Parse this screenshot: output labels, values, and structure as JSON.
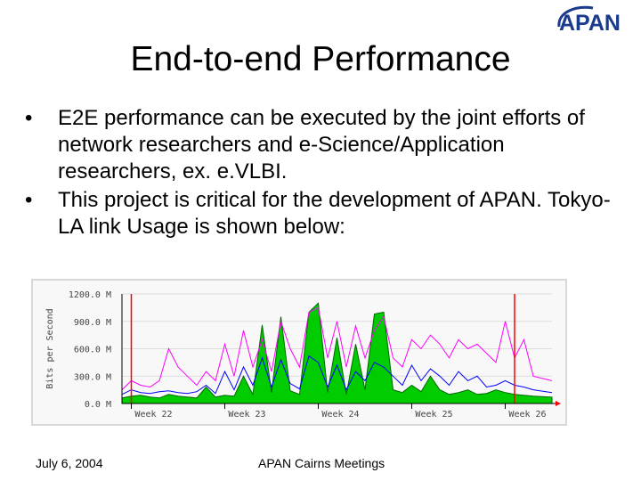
{
  "logo": {
    "text": "APAN",
    "icon": "apan-logo"
  },
  "slide": {
    "title": "End-to-end Performance",
    "bullets": [
      "E2E performance can be executed by the joint efforts of network researchers and e-Science/Application researchers, ex. e.VLBI.",
      "This project is critical for the development of APAN.  Tokyo-LA link Usage is shown below:"
    ]
  },
  "footer": {
    "date": "July 6, 2004",
    "meeting": "APAN Cairns Meetings"
  },
  "colors": {
    "chart_background": "#f8f8f8",
    "chart_frame": "#d8d8d8",
    "incoming": "#00cc00",
    "incoming_dark": "#006600",
    "outgoing": "#0000ff",
    "peak": "#ff00ff",
    "marker": "#ff0000",
    "grid": "#ff0000"
  },
  "chart_data": {
    "type": "area",
    "ylabel": "Bits per Second",
    "y_tick_labels": [
      "1200.0 M",
      "900.0 M",
      "600.0 M",
      "300.0 M",
      "0.0 M"
    ],
    "y_ticks": [
      1200,
      900,
      600,
      300,
      0
    ],
    "ylim": [
      0,
      1200
    ],
    "x_tick_labels": [
      "Week 22",
      "Week 23",
      "Week 24",
      "Week 25",
      "Week 26"
    ],
    "xlim": [
      21.9,
      26.5
    ],
    "grid": true,
    "series": [
      {
        "key": "green",
        "style": "area",
        "x": [
          21.9,
          22.0,
          22.1,
          22.2,
          22.3,
          22.4,
          22.5,
          22.6,
          22.7,
          22.8,
          22.9,
          23.0,
          23.1,
          23.2,
          23.3,
          23.4,
          23.5,
          23.6,
          23.7,
          23.8,
          23.9,
          24.0,
          24.1,
          24.2,
          24.3,
          24.4,
          24.5,
          24.6,
          24.7,
          24.8,
          24.9,
          25.0,
          25.1,
          25.2,
          25.3,
          25.4,
          25.5,
          25.6,
          25.7,
          25.8,
          25.9,
          26.0,
          26.1,
          26.2,
          26.3,
          26.5
        ],
        "y": [
          60,
          80,
          90,
          70,
          60,
          100,
          80,
          70,
          60,
          180,
          70,
          90,
          80,
          300,
          100,
          860,
          120,
          950,
          140,
          100,
          1000,
          1100,
          120,
          720,
          100,
          650,
          150,
          980,
          1000,
          150,
          120,
          200,
          130,
          300,
          150,
          100,
          120,
          150,
          100,
          110,
          150,
          120,
          100,
          90,
          80,
          70
        ]
      },
      {
        "key": "blue",
        "style": "line",
        "x": [
          21.9,
          22.0,
          22.1,
          22.2,
          22.3,
          22.4,
          22.5,
          22.6,
          22.7,
          22.8,
          22.9,
          23.0,
          23.1,
          23.2,
          23.3,
          23.4,
          23.5,
          23.6,
          23.7,
          23.8,
          23.9,
          24.0,
          24.1,
          24.2,
          24.3,
          24.4,
          24.5,
          24.6,
          24.7,
          24.8,
          24.9,
          25.0,
          25.1,
          25.2,
          25.3,
          25.4,
          25.5,
          25.6,
          25.7,
          25.8,
          25.9,
          26.0,
          26.1,
          26.2,
          26.3,
          26.5
        ],
        "y": [
          100,
          150,
          120,
          110,
          130,
          140,
          120,
          110,
          130,
          200,
          110,
          350,
          150,
          400,
          200,
          500,
          180,
          480,
          220,
          160,
          520,
          450,
          180,
          420,
          150,
          350,
          250,
          450,
          400,
          300,
          200,
          420,
          250,
          380,
          300,
          200,
          350,
          250,
          300,
          180,
          200,
          250,
          200,
          180,
          150,
          120
        ]
      },
      {
        "key": "magenta",
        "style": "line",
        "x": [
          21.9,
          22.0,
          22.1,
          22.2,
          22.3,
          22.4,
          22.5,
          22.6,
          22.7,
          22.8,
          22.9,
          23.0,
          23.1,
          23.2,
          23.3,
          23.4,
          23.5,
          23.6,
          23.7,
          23.8,
          23.9,
          24.0,
          24.1,
          24.2,
          24.3,
          24.4,
          24.5,
          24.6,
          24.7,
          24.8,
          24.9,
          25.0,
          25.1,
          25.2,
          25.3,
          25.4,
          25.5,
          25.6,
          25.7,
          25.8,
          25.9,
          26.0,
          26.1,
          26.2,
          26.3,
          26.5
        ],
        "y": [
          150,
          250,
          200,
          180,
          250,
          600,
          400,
          300,
          200,
          350,
          250,
          650,
          300,
          800,
          400,
          700,
          350,
          900,
          600,
          400,
          1000,
          1050,
          500,
          900,
          400,
          850,
          500,
          800,
          950,
          500,
          400,
          700,
          600,
          750,
          650,
          500,
          700,
          600,
          650,
          550,
          450,
          900,
          500,
          700,
          300,
          250
        ]
      }
    ],
    "markers_x": [
      22.0,
      26.1
    ]
  }
}
